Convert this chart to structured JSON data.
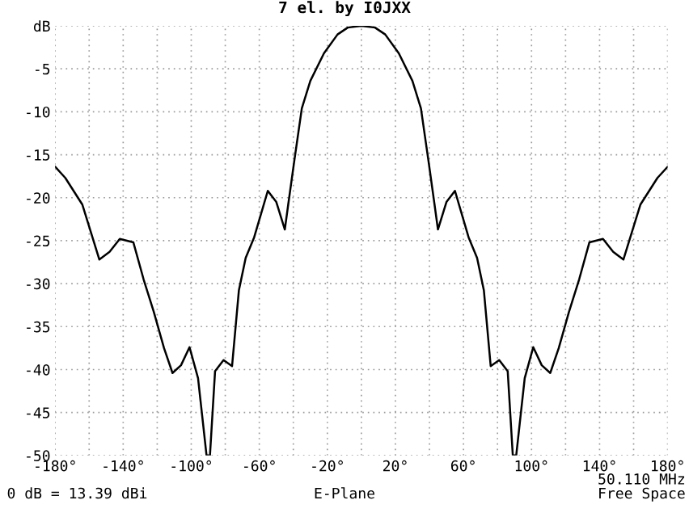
{
  "chart_data": {
    "type": "line",
    "title": "7 el. by I0JXX",
    "xlabel": "E-Plane",
    "annotations": [
      "0 dB = 13.39 dBi",
      "50.110 MHz\nFree Space"
    ],
    "x": [
      -180,
      -174,
      -164,
      -154,
      -148,
      -142,
      -134,
      -128,
      -122,
      -116,
      -111,
      -106,
      -101,
      -96,
      -91,
      -89,
      -86,
      -81,
      -76,
      -72,
      -68,
      -63,
      -55,
      -50,
      -45,
      -43,
      -39.5,
      -35,
      -30,
      -22,
      -14,
      -8,
      0,
      8,
      14,
      22,
      30,
      35,
      39.5,
      43,
      45,
      50,
      55,
      63,
      68,
      72,
      76,
      81,
      86,
      89,
      91,
      96,
      101,
      106,
      111,
      116,
      122,
      128,
      134,
      142,
      148,
      154,
      164,
      174,
      180
    ],
    "series": [
      {
        "color": "#000000",
        "values": [
          -16.4,
          -17.7,
          -20.8,
          -27.2,
          -26.3,
          -24.8,
          -25.2,
          -29.5,
          -33.3,
          -37.5,
          -40.4,
          -39.5,
          -37.4,
          -41,
          -50,
          -50,
          -40.2,
          -38.9,
          -39.6,
          -30.8,
          -27,
          -24.6,
          -19.2,
          -20.5,
          -23.7,
          -20.8,
          -15.8,
          -9.6,
          -6.4,
          -3.2,
          -1,
          -0.2,
          0,
          -0.2,
          -1,
          -3.2,
          -6.4,
          -9.6,
          -15.8,
          -20.8,
          -23.7,
          -20.5,
          -19.2,
          -24.6,
          -27,
          -30.8,
          -39.6,
          -38.9,
          -40.2,
          -50,
          -50,
          -41,
          -37.4,
          -39.5,
          -40.4,
          -37.5,
          -33.3,
          -29.5,
          -25.2,
          -24.8,
          -26.3,
          -27.2,
          -20.8,
          -17.7,
          -16.4
        ]
      }
    ],
    "xlim": [
      -180,
      180
    ],
    "xticks": [
      {
        "value": -180,
        "label": "-180°"
      },
      {
        "value": -160,
        "label": null
      },
      {
        "value": -140,
        "label": "-140°"
      },
      {
        "value": -120,
        "label": null
      },
      {
        "value": -100,
        "label": "-100°"
      },
      {
        "value": -80,
        "label": null
      },
      {
        "value": -60,
        "label": "-60°"
      },
      {
        "value": -40,
        "label": null
      },
      {
        "value": -20,
        "label": "-20°"
      },
      {
        "value": 0,
        "label": null
      },
      {
        "value": 20,
        "label": "20°"
      },
      {
        "value": 40,
        "label": null
      },
      {
        "value": 60,
        "label": "60°"
      },
      {
        "value": 80,
        "label": null
      },
      {
        "value": 100,
        "label": "100°"
      },
      {
        "value": 120,
        "label": null
      },
      {
        "value": 140,
        "label": "140°"
      },
      {
        "value": 160,
        "label": null
      },
      {
        "value": 180,
        "label": "180°"
      }
    ],
    "ylim": [
      -50,
      0
    ],
    "yticks": [
      {
        "value": -50,
        "label": "-50"
      },
      {
        "value": -45,
        "label": "-45"
      },
      {
        "value": -40,
        "label": "-40"
      },
      {
        "value": -35,
        "label": "-35"
      },
      {
        "value": -30,
        "label": "-30"
      },
      {
        "value": -25,
        "label": "-25"
      },
      {
        "value": -20,
        "label": "-20"
      },
      {
        "value": -15,
        "label": "-15"
      },
      {
        "value": -10,
        "label": "-10"
      },
      {
        "value": -5,
        "label": "-5"
      },
      {
        "value": 0,
        "label": "dB"
      }
    ],
    "grid": true,
    "legend": false,
    "marker": "none",
    "line_style": "solid"
  }
}
